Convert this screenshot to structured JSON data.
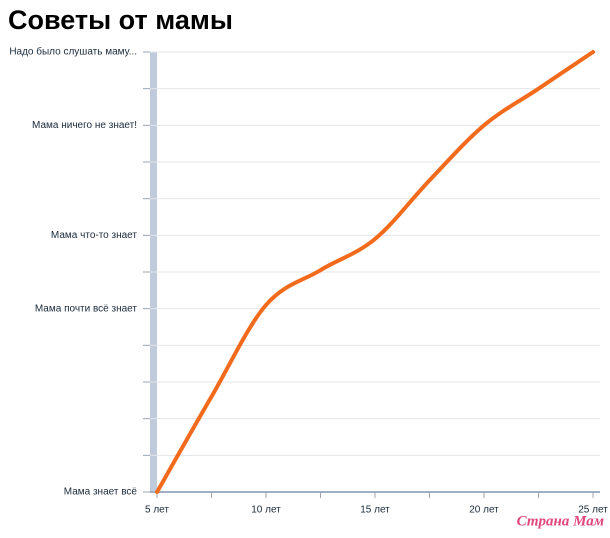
{
  "chart_data": {
    "type": "line",
    "title": "Советы от мамы",
    "x": [
      5,
      7.5,
      10,
      12.5,
      15,
      17.5,
      20,
      22.5,
      25
    ],
    "series": [
      {
        "color": "#f26b1d",
        "values": [
          0,
          2.6,
          5.1,
          6.05,
          6.9,
          8.5,
          10,
          11,
          12
        ]
      }
    ],
    "xlim": [
      5,
      25
    ],
    "xticks": [
      {
        "value": 5,
        "label": "5 лет"
      },
      {
        "value": 7.5,
        "label": null
      },
      {
        "value": 10,
        "label": "10 лет"
      },
      {
        "value": 12.5,
        "label": null
      },
      {
        "value": 15,
        "label": "15 лет"
      },
      {
        "value": 17.5,
        "label": null
      },
      {
        "value": 20,
        "label": "20 лет"
      },
      {
        "value": 22.5,
        "label": null
      },
      {
        "value": 25,
        "label": "25 лет"
      }
    ],
    "ylim": [
      0,
      12
    ],
    "yticks": [
      {
        "value": 0,
        "label": "Мама знает всё"
      },
      {
        "value": 1,
        "label": null
      },
      {
        "value": 2,
        "label": null
      },
      {
        "value": 3,
        "label": null
      },
      {
        "value": 4,
        "label": null
      },
      {
        "value": 5,
        "label": "Мама почти всё знает"
      },
      {
        "value": 6,
        "label": null
      },
      {
        "value": 7,
        "label": "Мама что-то знает"
      },
      {
        "value": 8,
        "label": null
      },
      {
        "value": 9,
        "label": null
      },
      {
        "value": 10,
        "label": "Мама ничего не знает!"
      },
      {
        "value": 11,
        "label": null
      },
      {
        "value": 12,
        "label": "Надо было слушать маму..."
      }
    ],
    "grid": true,
    "watermark": "Страна Мам"
  }
}
